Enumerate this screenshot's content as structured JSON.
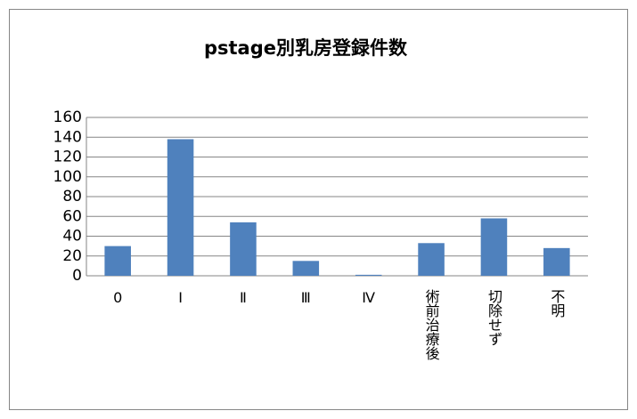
{
  "chart_data": {
    "type": "bar",
    "title": "pstage別乳房登録件数",
    "categories": [
      "0",
      "Ⅰ",
      "Ⅱ",
      "Ⅲ",
      "Ⅳ",
      "術前治療後",
      "切除せず",
      "不明"
    ],
    "values": [
      30,
      138,
      54,
      15,
      1,
      33,
      58,
      28
    ],
    "color": "#4f81bd",
    "ylim": [
      0,
      160
    ],
    "yticks": [
      0,
      20,
      40,
      60,
      80,
      100,
      120,
      140,
      160
    ],
    "grid": true
  }
}
